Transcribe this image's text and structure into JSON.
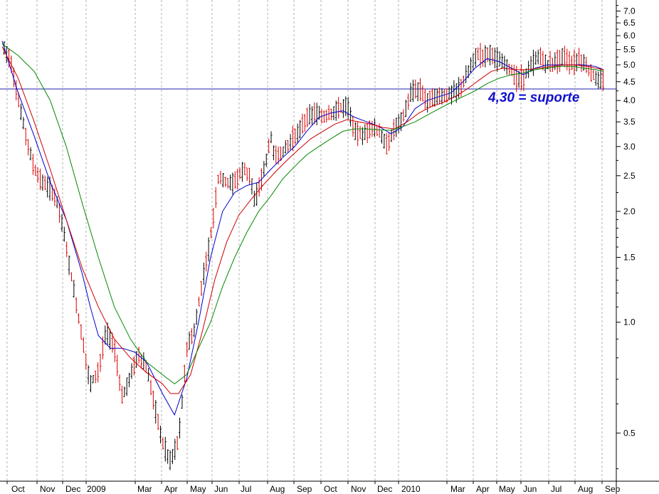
{
  "chart_data": {
    "type": "candlestick",
    "title": "",
    "xlabel": "",
    "ylabel": "",
    "y_scale": "log",
    "ylim": [
      0.37,
      7.5
    ],
    "grid": "vertical dotted lines at month starts",
    "x_tick_labels": [
      "Oct",
      "Nov",
      "Dec",
      "2009",
      "Mar",
      "Apr",
      "May",
      "Jun",
      "Jul",
      "Aug",
      "Sep",
      "Oct",
      "Nov",
      "Dec",
      "2010",
      "Mar",
      "Apr",
      "May",
      "Jun",
      "Jul",
      "Aug",
      "Sep"
    ],
    "y_tick_labels": [
      "7.0",
      "6.5",
      "6.0",
      "5.5",
      "5.0",
      "4.5",
      "4.0",
      "3.5",
      "3.0",
      "2.5",
      "2.0",
      "1.5",
      "1.0",
      "0.5"
    ],
    "y_tick_values": [
      7.0,
      6.5,
      6.0,
      5.5,
      5.0,
      4.5,
      4.0,
      3.5,
      3.0,
      2.5,
      2.0,
      1.5,
      1.0,
      0.5
    ],
    "support_line": {
      "value": 4.3,
      "color": "#2020b0"
    },
    "annotation": {
      "text": "4,30 = suporte",
      "color": "#1010cc"
    },
    "price_path": [
      [
        0,
        5.7
      ],
      [
        2,
        5.2
      ],
      [
        4,
        4.0
      ],
      [
        6,
        3.2
      ],
      [
        8,
        2.6
      ],
      [
        10,
        2.4
      ],
      [
        12,
        2.3
      ],
      [
        14,
        2.1
      ],
      [
        16,
        1.6
      ],
      [
        18,
        1.2
      ],
      [
        20,
        0.9
      ],
      [
        22,
        0.68
      ],
      [
        24,
        0.74
      ],
      [
        26,
        0.95
      ],
      [
        28,
        0.85
      ],
      [
        30,
        0.62
      ],
      [
        32,
        0.72
      ],
      [
        34,
        0.82
      ],
      [
        36,
        0.75
      ],
      [
        38,
        0.6
      ],
      [
        40,
        0.47
      ],
      [
        42,
        0.42
      ],
      [
        44,
        0.48
      ],
      [
        45,
        0.62
      ],
      [
        46,
        0.85
      ],
      [
        48,
        0.95
      ],
      [
        50,
        1.3
      ],
      [
        52,
        1.7
      ],
      [
        54,
        2.5
      ],
      [
        56,
        2.4
      ],
      [
        58,
        2.4
      ],
      [
        60,
        2.6
      ],
      [
        62,
        2.5
      ],
      [
        63,
        2.1
      ],
      [
        64,
        2.3
      ],
      [
        66,
        2.8
      ],
      [
        67,
        3.2
      ],
      [
        68,
        2.8
      ],
      [
        70,
        2.9
      ],
      [
        72,
        3.1
      ],
      [
        74,
        3.3
      ],
      [
        76,
        3.6
      ],
      [
        78,
        3.7
      ],
      [
        80,
        3.6
      ],
      [
        82,
        3.7
      ],
      [
        84,
        3.8
      ],
      [
        86,
        3.9
      ],
      [
        88,
        3.3
      ],
      [
        90,
        3.2
      ],
      [
        92,
        3.4
      ],
      [
        94,
        3.3
      ],
      [
        96,
        3.0
      ],
      [
        98,
        3.4
      ],
      [
        100,
        3.6
      ],
      [
        102,
        4.2
      ],
      [
        104,
        4.3
      ],
      [
        106,
        4.0
      ],
      [
        108,
        4.1
      ],
      [
        110,
        4.1
      ],
      [
        112,
        4.2
      ],
      [
        114,
        4.3
      ],
      [
        116,
        4.7
      ],
      [
        118,
        5.3
      ],
      [
        120,
        5.3
      ],
      [
        122,
        5.4
      ],
      [
        124,
        5.1
      ],
      [
        126,
        5.0
      ],
      [
        128,
        4.6
      ],
      [
        130,
        4.6
      ],
      [
        132,
        5.0
      ],
      [
        134,
        5.3
      ],
      [
        136,
        5.0
      ],
      [
        138,
        5.1
      ],
      [
        140,
        5.3
      ],
      [
        142,
        5.0
      ],
      [
        144,
        5.2
      ],
      [
        146,
        4.9
      ],
      [
        148,
        4.6
      ],
      [
        150,
        4.5
      ]
    ],
    "series": [
      {
        "color": "#0000cc",
        "points": [
          [
            0,
            5.8
          ],
          [
            4,
            4.2
          ],
          [
            8,
            3.2
          ],
          [
            12,
            2.4
          ],
          [
            16,
            1.9
          ],
          [
            20,
            1.35
          ],
          [
            22,
            1.1
          ],
          [
            24,
            0.92
          ],
          [
            27,
            0.85
          ],
          [
            30,
            0.85
          ],
          [
            33,
            0.83
          ],
          [
            36,
            0.78
          ],
          [
            40,
            0.64
          ],
          [
            43,
            0.56
          ],
          [
            46,
            0.7
          ],
          [
            49,
            1.0
          ],
          [
            52,
            1.5
          ],
          [
            55,
            2.0
          ],
          [
            58,
            2.25
          ],
          [
            61,
            2.35
          ],
          [
            64,
            2.4
          ],
          [
            67,
            2.6
          ],
          [
            70,
            2.8
          ],
          [
            73,
            3.0
          ],
          [
            76,
            3.3
          ],
          [
            79,
            3.6
          ],
          [
            82,
            3.7
          ],
          [
            85,
            3.75
          ],
          [
            88,
            3.6
          ],
          [
            91,
            3.5
          ],
          [
            94,
            3.4
          ],
          [
            97,
            3.25
          ],
          [
            100,
            3.4
          ],
          [
            103,
            3.8
          ],
          [
            106,
            4.0
          ],
          [
            109,
            4.1
          ],
          [
            112,
            4.2
          ],
          [
            115,
            4.5
          ],
          [
            118,
            4.9
          ],
          [
            121,
            5.2
          ],
          [
            124,
            5.1
          ],
          [
            127,
            4.9
          ],
          [
            130,
            4.7
          ],
          [
            133,
            4.9
          ],
          [
            136,
            5.0
          ],
          [
            139,
            5.0
          ],
          [
            142,
            5.0
          ],
          [
            145,
            5.0
          ],
          [
            148,
            4.95
          ],
          [
            150,
            4.85
          ]
        ]
      },
      {
        "color": "#cc0000",
        "points": [
          [
            0,
            5.6
          ],
          [
            4,
            4.6
          ],
          [
            8,
            3.5
          ],
          [
            12,
            2.6
          ],
          [
            16,
            1.9
          ],
          [
            20,
            1.4
          ],
          [
            24,
            1.1
          ],
          [
            28,
            0.9
          ],
          [
            32,
            0.8
          ],
          [
            36,
            0.73
          ],
          [
            40,
            0.68
          ],
          [
            42,
            0.64
          ],
          [
            44,
            0.64
          ],
          [
            47,
            0.72
          ],
          [
            50,
            0.95
          ],
          [
            53,
            1.3
          ],
          [
            56,
            1.65
          ],
          [
            59,
            1.95
          ],
          [
            62,
            2.15
          ],
          [
            65,
            2.35
          ],
          [
            68,
            2.55
          ],
          [
            71,
            2.75
          ],
          [
            74,
            2.95
          ],
          [
            77,
            3.15
          ],
          [
            80,
            3.3
          ],
          [
            83,
            3.45
          ],
          [
            86,
            3.55
          ],
          [
            89,
            3.5
          ],
          [
            92,
            3.45
          ],
          [
            95,
            3.38
          ],
          [
            98,
            3.35
          ],
          [
            101,
            3.5
          ],
          [
            104,
            3.7
          ],
          [
            107,
            3.85
          ],
          [
            110,
            3.95
          ],
          [
            113,
            4.1
          ],
          [
            116,
            4.3
          ],
          [
            119,
            4.55
          ],
          [
            122,
            4.8
          ],
          [
            125,
            4.9
          ],
          [
            128,
            4.85
          ],
          [
            131,
            4.85
          ],
          [
            134,
            4.9
          ],
          [
            137,
            4.95
          ],
          [
            140,
            5.0
          ],
          [
            143,
            5.0
          ],
          [
            146,
            4.95
          ],
          [
            150,
            4.85
          ]
        ]
      },
      {
        "color": "#008800",
        "points": [
          [
            0,
            5.7
          ],
          [
            4,
            5.3
          ],
          [
            8,
            4.8
          ],
          [
            12,
            4.0
          ],
          [
            16,
            3.0
          ],
          [
            20,
            2.1
          ],
          [
            24,
            1.5
          ],
          [
            28,
            1.1
          ],
          [
            32,
            0.9
          ],
          [
            36,
            0.78
          ],
          [
            40,
            0.72
          ],
          [
            43,
            0.68
          ],
          [
            46,
            0.72
          ],
          [
            49,
            0.85
          ],
          [
            52,
            1.0
          ],
          [
            55,
            1.25
          ],
          [
            58,
            1.5
          ],
          [
            61,
            1.75
          ],
          [
            64,
            2.0
          ],
          [
            67,
            2.2
          ],
          [
            70,
            2.45
          ],
          [
            73,
            2.65
          ],
          [
            76,
            2.85
          ],
          [
            79,
            3.0
          ],
          [
            82,
            3.15
          ],
          [
            85,
            3.3
          ],
          [
            88,
            3.35
          ],
          [
            91,
            3.35
          ],
          [
            94,
            3.33
          ],
          [
            97,
            3.32
          ],
          [
            100,
            3.4
          ],
          [
            103,
            3.5
          ],
          [
            106,
            3.65
          ],
          [
            109,
            3.8
          ],
          [
            112,
            3.95
          ],
          [
            115,
            4.1
          ],
          [
            118,
            4.25
          ],
          [
            121,
            4.45
          ],
          [
            124,
            4.6
          ],
          [
            127,
            4.7
          ],
          [
            130,
            4.75
          ],
          [
            133,
            4.85
          ],
          [
            136,
            4.9
          ],
          [
            139,
            4.95
          ],
          [
            142,
            4.95
          ],
          [
            145,
            4.9
          ],
          [
            148,
            4.85
          ],
          [
            150,
            4.8
          ]
        ]
      }
    ],
    "colors": {
      "up_candle": "#000000",
      "down_candle": "#dd0000",
      "grid": "#b0b0b0"
    }
  }
}
